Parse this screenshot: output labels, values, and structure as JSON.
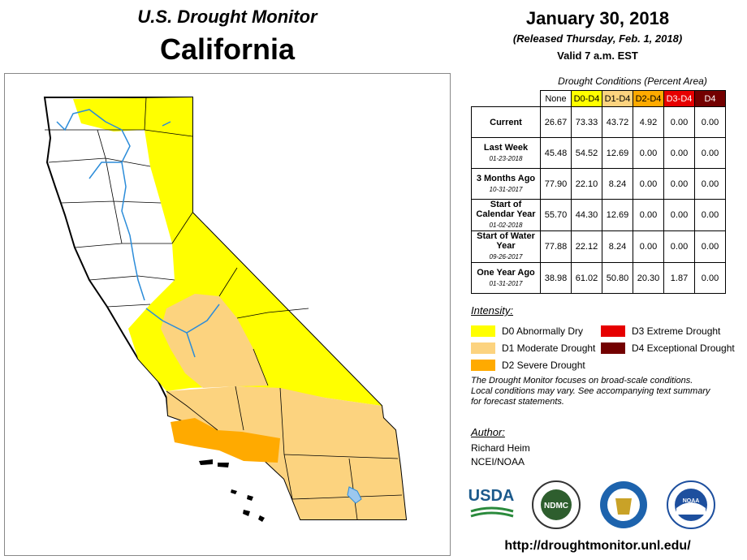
{
  "header": {
    "title": "U.S. Drought Monitor",
    "state": "California",
    "date": "January 30, 2018",
    "released": "(Released Thursday, Feb. 1, 2018)",
    "valid": "Valid 7 a.m. EST"
  },
  "table": {
    "caption": "Drought Conditions (Percent Area)",
    "columns": [
      {
        "label": "None",
        "color": "#ffffff"
      },
      {
        "label": "D0-D4",
        "color": "#ffff00"
      },
      {
        "label": "D1-D4",
        "color": "#fcd37f"
      },
      {
        "label": "D2-D4",
        "color": "#ffaa00"
      },
      {
        "label": "D3-D4",
        "color": "#e60000"
      },
      {
        "label": "D4",
        "color": "#730000"
      }
    ],
    "rows": [
      {
        "label": "Current",
        "values": [
          "26.67",
          "73.33",
          "43.72",
          "4.92",
          "0.00",
          "0.00"
        ]
      },
      {
        "label": "Last Week",
        "date": "01-23-2018",
        "values": [
          "45.48",
          "54.52",
          "12.69",
          "0.00",
          "0.00",
          "0.00"
        ]
      },
      {
        "label": "3 Months Ago",
        "date": "10-31-2017",
        "values": [
          "77.90",
          "22.10",
          "8.24",
          "0.00",
          "0.00",
          "0.00"
        ]
      },
      {
        "label": "Start of Calendar Year",
        "date": "01-02-2018",
        "values": [
          "55.70",
          "44.30",
          "12.69",
          "0.00",
          "0.00",
          "0.00"
        ]
      },
      {
        "label": "Start of Water Year",
        "date": "09-26-2017",
        "values": [
          "77.88",
          "22.12",
          "8.24",
          "0.00",
          "0.00",
          "0.00"
        ]
      },
      {
        "label": "One Year Ago",
        "date": "01-31-2017",
        "values": [
          "38.98",
          "61.02",
          "50.80",
          "20.30",
          "1.87",
          "0.00"
        ]
      }
    ]
  },
  "legend": {
    "title": "Intensity:",
    "items": [
      {
        "label": "D0 Abnormally Dry",
        "color": "#ffff00"
      },
      {
        "label": "D1 Moderate Drought",
        "color": "#fcd37f"
      },
      {
        "label": "D2 Severe Drought",
        "color": "#ffaa00"
      },
      {
        "label": "D3 Extreme Drought",
        "color": "#e60000"
      },
      {
        "label": "D4 Exceptional Drought",
        "color": "#730000"
      }
    ]
  },
  "note": "The Drought Monitor focuses on broad-scale conditions. Local conditions may vary. See accompanying text summary for forecast statements.",
  "author": {
    "title": "Author:",
    "name": "Richard Heim",
    "org": "NCEI/NOAA"
  },
  "logos": [
    "USDA",
    "NDMC",
    "NOAA"
  ],
  "url": "http://droughtmonitor.unl.edu/"
}
